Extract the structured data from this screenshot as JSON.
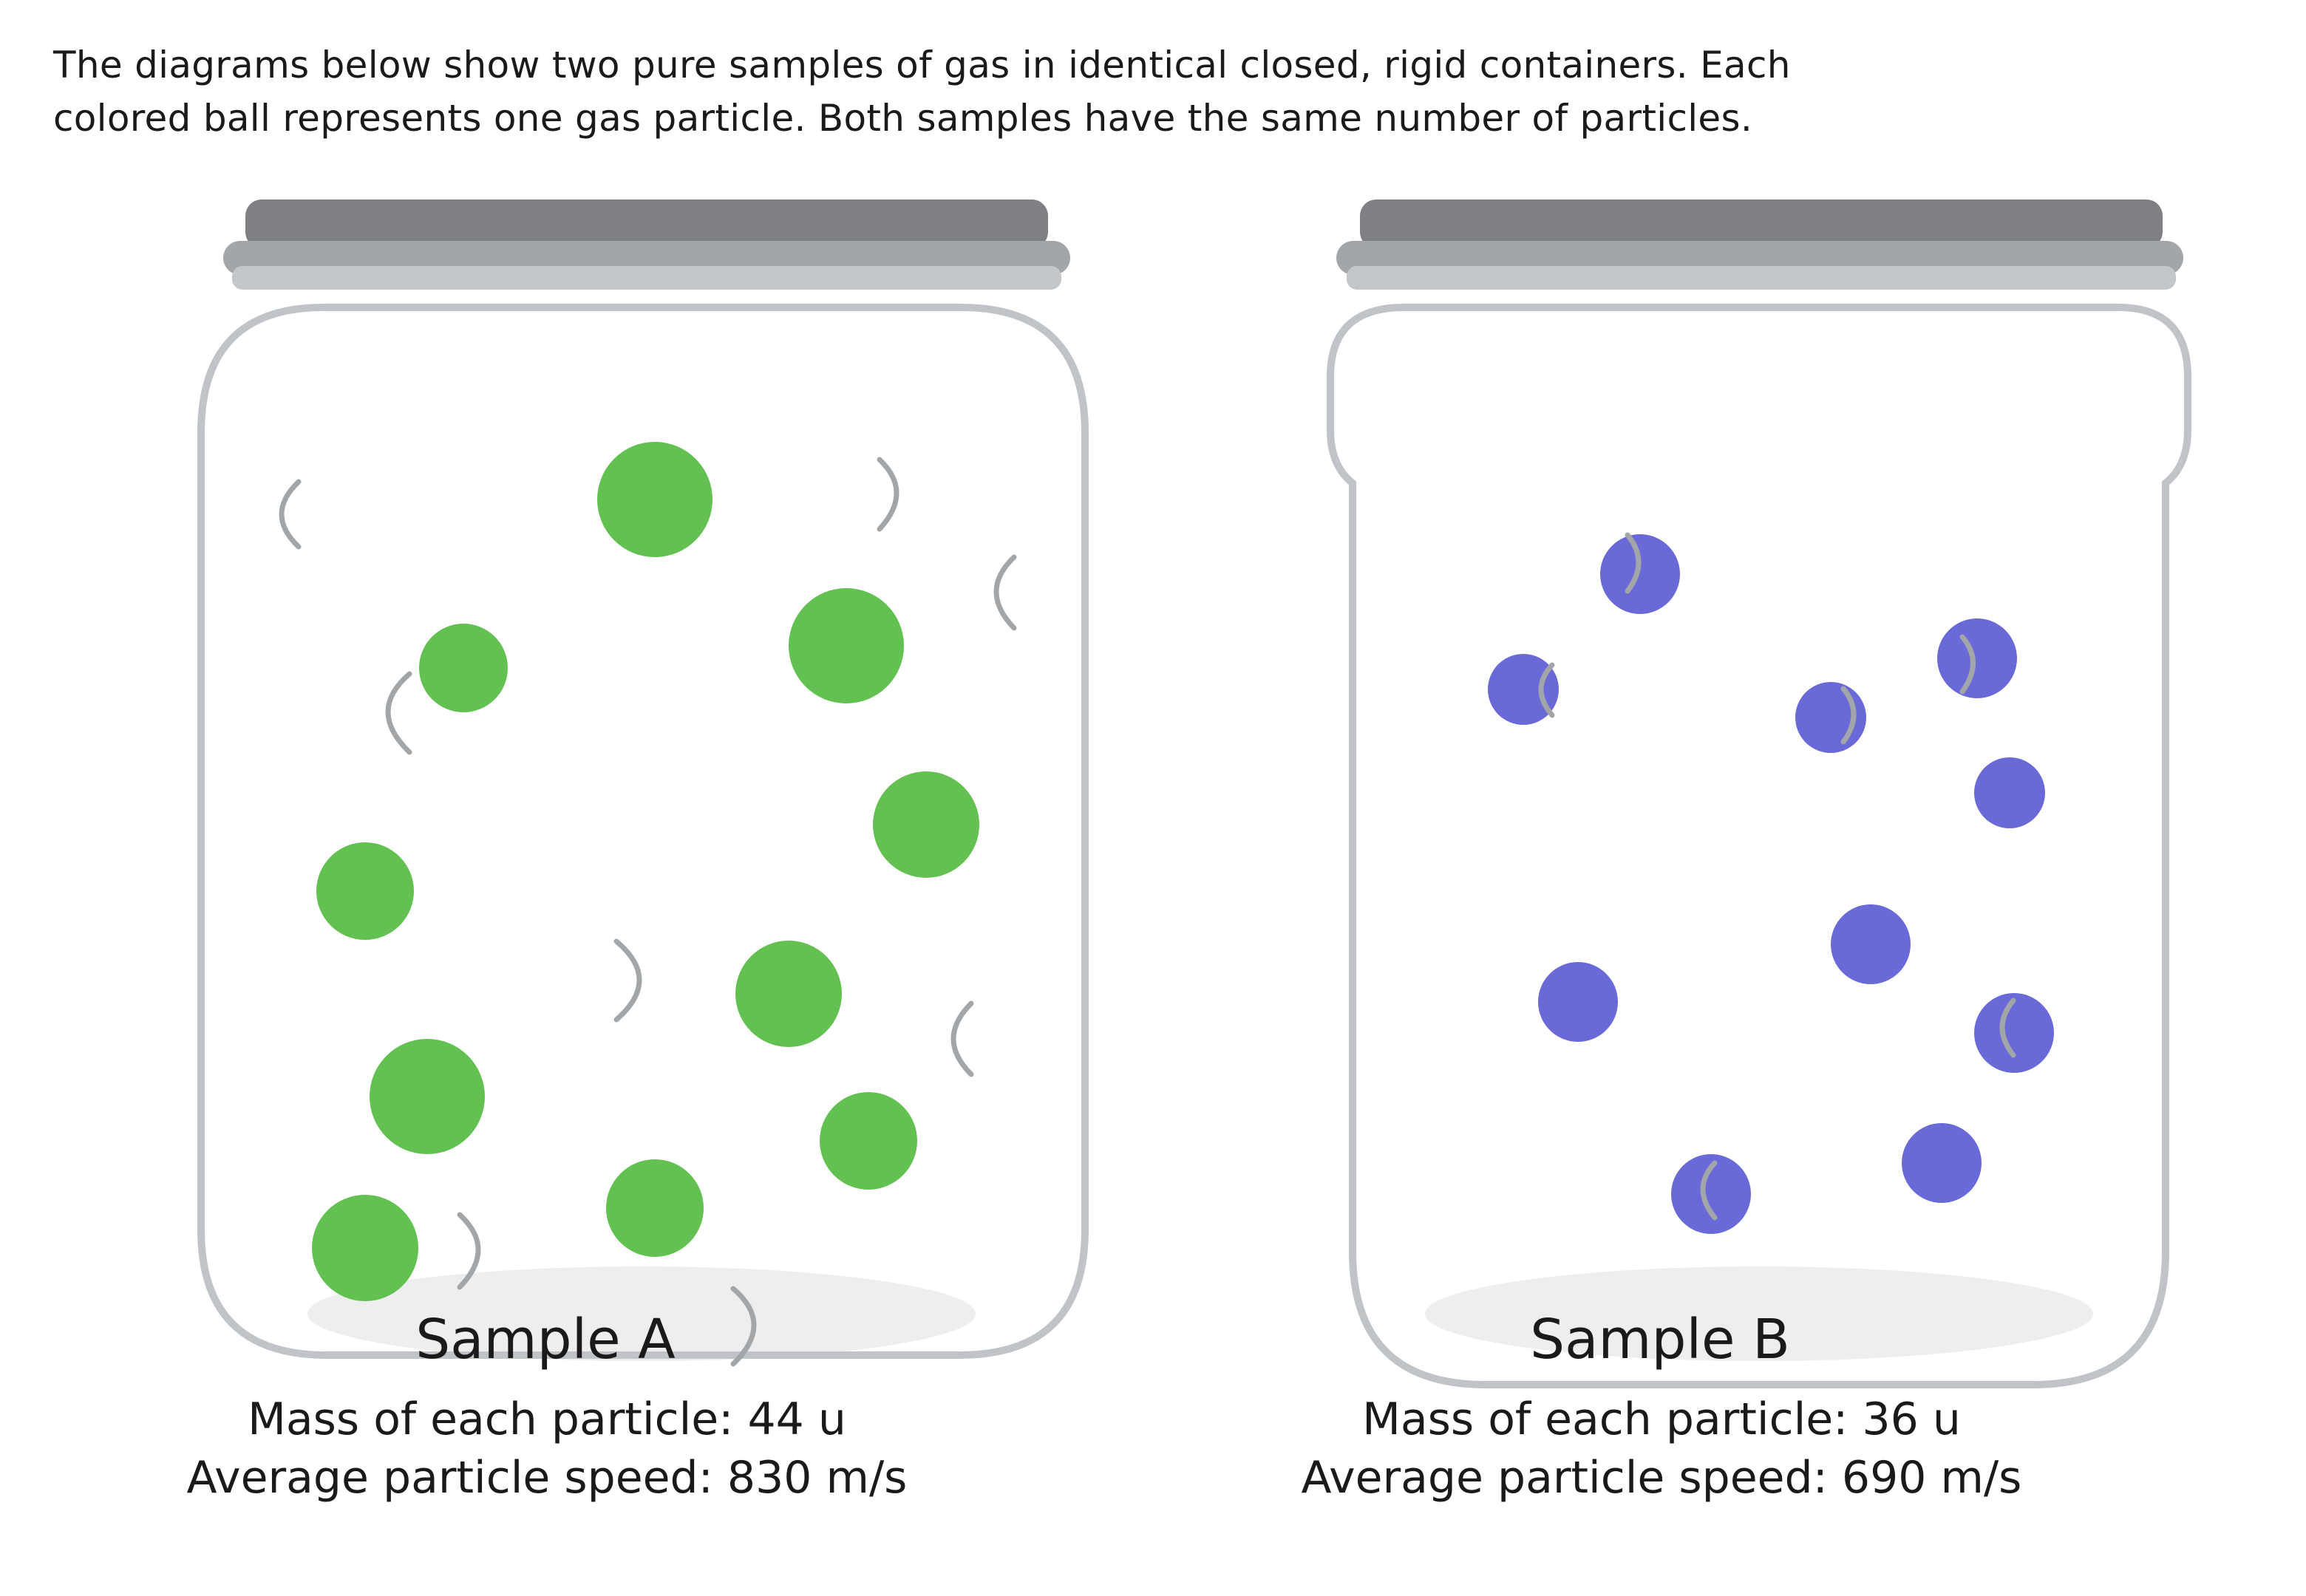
{
  "intro": {
    "line1": "The diagrams below show two pure samples of gas in identical closed, rigid containers. Each",
    "line2": "colored ball represents one gas particle. Both samples have the same number of particles."
  },
  "colors": {
    "sample_a_particle": "#63c152",
    "sample_b_particle": "#6a69d8",
    "jar_outline": "#c0c3c7",
    "lid_dark": "#7f8084",
    "lid_mid": "#a3a6a9",
    "lid_light": "#c4c7ca",
    "motion_mark": "#a3a6a9",
    "jar_base_shadow": "#eeeeee"
  },
  "icons": {
    "particle": "filled-circle",
    "motion": "curved-arc-motion-mark",
    "container": "jar-with-lid"
  },
  "samples": [
    {
      "name": "Sample A",
      "mass_text": "Mass of each particle: 44 u",
      "speed_text": "Average particle speed: 830 m/s"
    },
    {
      "name": "Sample B",
      "mass_text": "Mass of each particle: 36 u",
      "speed_text": "Average particle speed: 690 m/s"
    }
  ]
}
